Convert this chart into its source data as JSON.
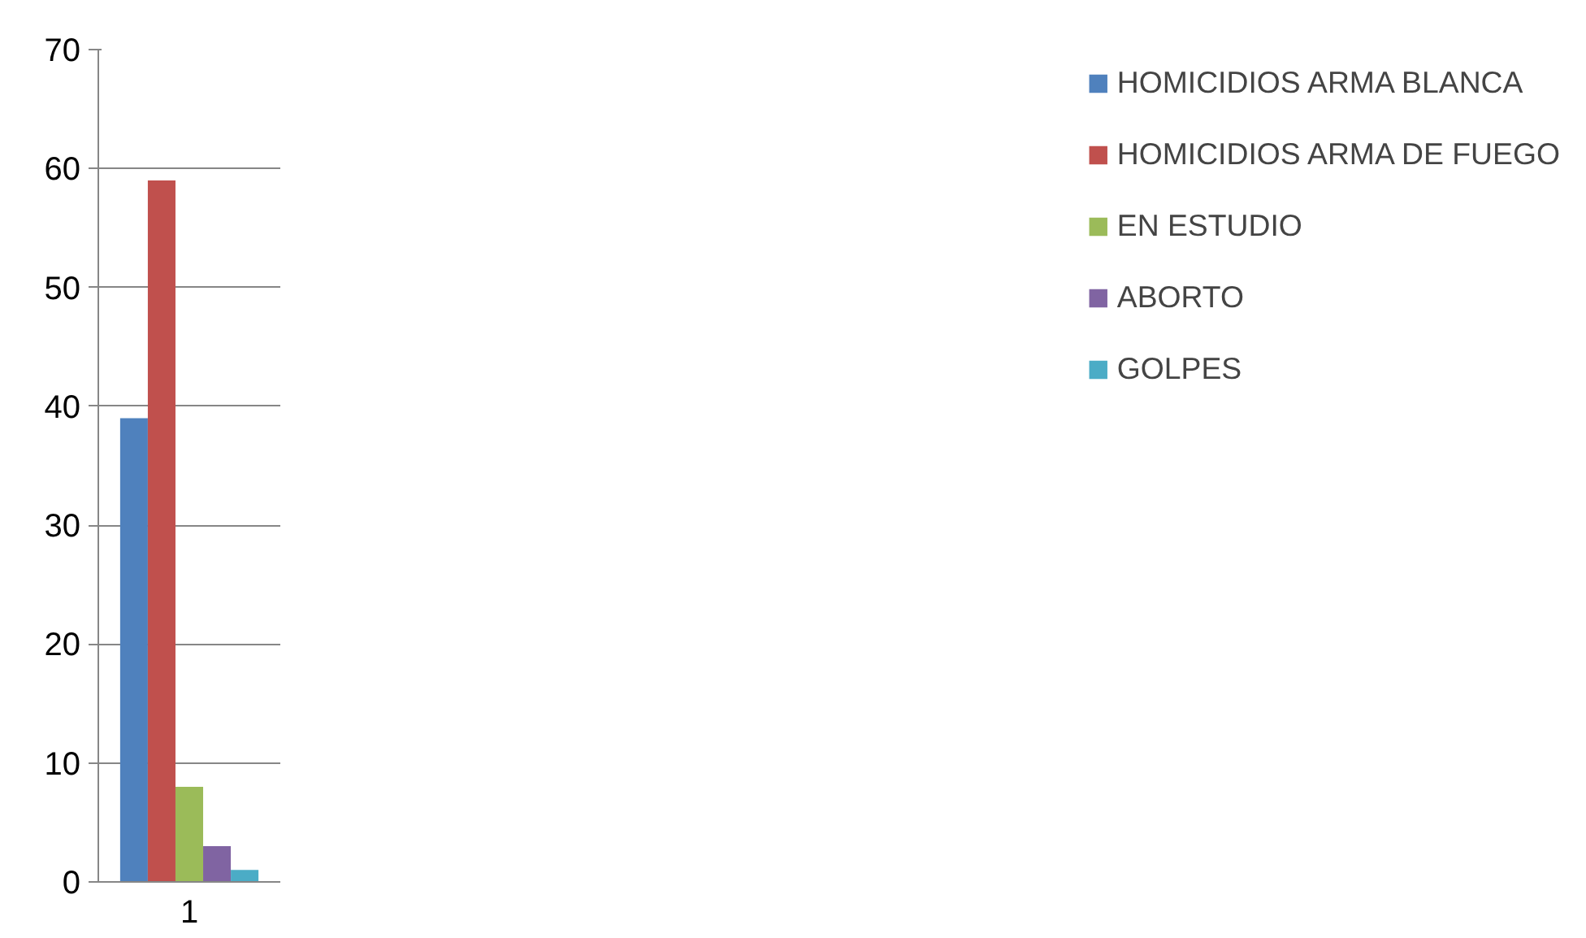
{
  "chart_data": {
    "type": "bar",
    "categories": [
      "1"
    ],
    "series": [
      {
        "name": "HOMICIDIOS ARMA BLANCA",
        "color": "#4f81bd",
        "values": [
          39
        ]
      },
      {
        "name": "HOMICIDIOS ARMA DE FUEGO",
        "color": "#c0504d",
        "values": [
          59
        ]
      },
      {
        "name": "EN ESTUDIO",
        "color": "#9bbb59",
        "values": [
          8
        ]
      },
      {
        "name": "ABORTO",
        "color": "#8064a2",
        "values": [
          3
        ]
      },
      {
        "name": "GOLPES",
        "color": "#4bacc6",
        "values": [
          1
        ]
      }
    ],
    "ylim": [
      0,
      70
    ],
    "yticks": [
      0,
      10,
      20,
      30,
      40,
      50,
      60,
      70
    ],
    "grid": "y",
    "legend": "right"
  }
}
